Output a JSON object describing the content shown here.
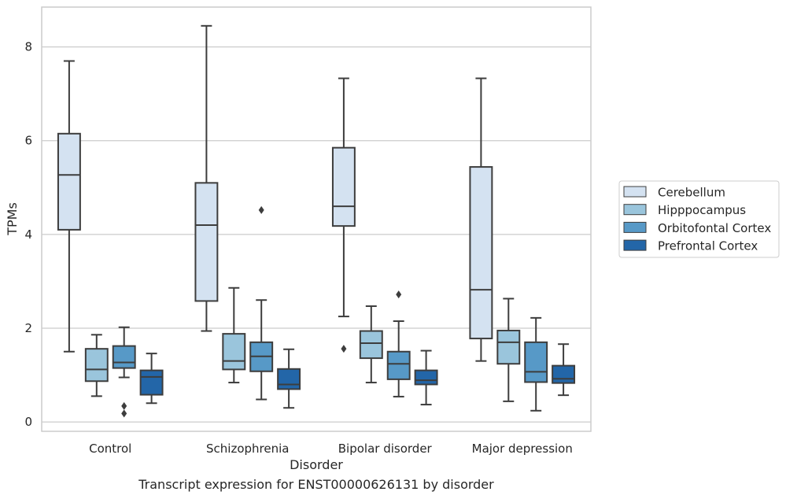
{
  "caption": "Transcript expression for ENST00000626131 by disorder",
  "chart_data": {
    "type": "box",
    "xlabel": "Disorder",
    "ylabel": "TPMs",
    "ylim": [
      -0.2,
      8.85
    ],
    "yticks": [
      0,
      2,
      4,
      6,
      8
    ],
    "categories": [
      "Control",
      "Schizophrenia",
      "Bipolar disorder",
      "Major depression"
    ],
    "grid": "y",
    "legend_position": "right",
    "series": [
      {
        "name": "Cerebellum",
        "color": "#d4e2f1",
        "boxes": [
          {
            "whislo": 1.5,
            "q1": 4.1,
            "med": 5.27,
            "q3": 6.15,
            "whishi": 7.7,
            "fliers": []
          },
          {
            "whislo": 1.94,
            "q1": 2.58,
            "med": 4.2,
            "q3": 5.1,
            "whishi": 8.45,
            "fliers": []
          },
          {
            "whislo": 2.25,
            "q1": 4.18,
            "med": 4.6,
            "q3": 5.85,
            "whishi": 7.33,
            "fliers": [
              1.56
            ]
          },
          {
            "whislo": 1.3,
            "q1": 1.78,
            "med": 2.82,
            "q3": 5.44,
            "whishi": 7.33,
            "fliers": []
          }
        ]
      },
      {
        "name": "Hipppocampus",
        "color": "#9ac5dc",
        "boxes": [
          {
            "whislo": 0.55,
            "q1": 0.87,
            "med": 1.12,
            "q3": 1.56,
            "whishi": 1.86,
            "fliers": []
          },
          {
            "whislo": 0.84,
            "q1": 1.12,
            "med": 1.3,
            "q3": 1.88,
            "whishi": 2.86,
            "fliers": []
          },
          {
            "whislo": 0.84,
            "q1": 1.36,
            "med": 1.68,
            "q3": 1.94,
            "whishi": 2.47,
            "fliers": []
          },
          {
            "whislo": 0.44,
            "q1": 1.24,
            "med": 1.7,
            "q3": 1.95,
            "whishi": 2.63,
            "fliers": []
          }
        ]
      },
      {
        "name": "Orbitofontal Cortex",
        "color": "#5799c7",
        "boxes": [
          {
            "whislo": 0.95,
            "q1": 1.15,
            "med": 1.27,
            "q3": 1.62,
            "whishi": 2.02,
            "fliers": [
              0.34,
              0.18
            ]
          },
          {
            "whislo": 0.48,
            "q1": 1.08,
            "med": 1.4,
            "q3": 1.7,
            "whishi": 2.6,
            "fliers": [
              4.52
            ]
          },
          {
            "whislo": 0.54,
            "q1": 0.91,
            "med": 1.24,
            "q3": 1.5,
            "whishi": 2.15,
            "fliers": [
              2.72
            ]
          },
          {
            "whislo": 0.24,
            "q1": 0.85,
            "med": 1.07,
            "q3": 1.7,
            "whishi": 2.22,
            "fliers": []
          }
        ]
      },
      {
        "name": "Prefrontal Cortex",
        "color": "#2366a8",
        "boxes": [
          {
            "whislo": 0.4,
            "q1": 0.58,
            "med": 0.96,
            "q3": 1.1,
            "whishi": 1.46,
            "fliers": []
          },
          {
            "whislo": 0.3,
            "q1": 0.7,
            "med": 0.8,
            "q3": 1.13,
            "whishi": 1.55,
            "fliers": []
          },
          {
            "whislo": 0.37,
            "q1": 0.8,
            "med": 0.89,
            "q3": 1.1,
            "whishi": 1.52,
            "fliers": []
          },
          {
            "whislo": 0.57,
            "q1": 0.83,
            "med": 0.92,
            "q3": 1.2,
            "whishi": 1.66,
            "fliers": []
          }
        ]
      }
    ]
  }
}
